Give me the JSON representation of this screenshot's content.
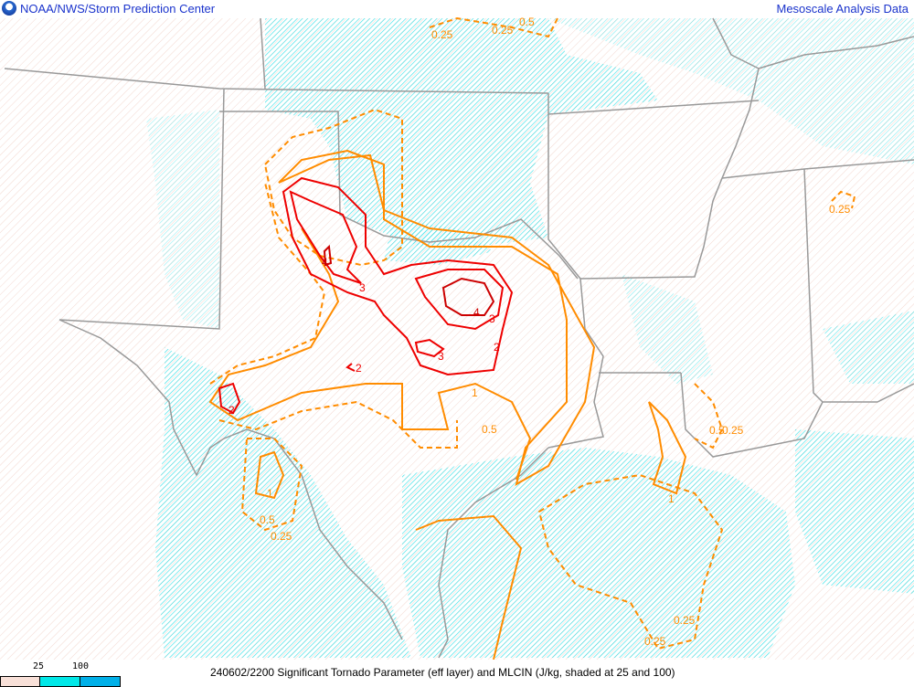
{
  "header": {
    "left_title": "NOAA/NWS/Storm Prediction Center",
    "right_title": "Mesoscale Analysis Data",
    "logo_icon": "noaa-logo-icon"
  },
  "footer": {
    "caption": "240602/2200 Significant Tornado Parameter (eff layer) and MLCIN (J/kg, shaded at 25 and 100)",
    "legend": {
      "ticks": [
        "25",
        "100"
      ],
      "colors": [
        "#f8e0d8",
        "#00e8e8",
        "#00b0e8"
      ]
    }
  },
  "map": {
    "colors": {
      "state_lines": "#999999",
      "cin_hatch": "#00d8e0",
      "background_hatch": "#f0d0c8",
      "stp_low": "#ff8c00",
      "stp_high": "#ee0000",
      "stp_max": "#cc0000"
    },
    "contour_labels": [
      "0.25",
      "0.25",
      "0.5",
      "0.25",
      "4",
      "3",
      "4",
      "3",
      "2",
      "3",
      "2",
      "2",
      "1",
      "0.5",
      "1",
      "0.5",
      "0.25",
      "0.5",
      "0.25",
      "1",
      "0.25",
      "0.25"
    ]
  }
}
